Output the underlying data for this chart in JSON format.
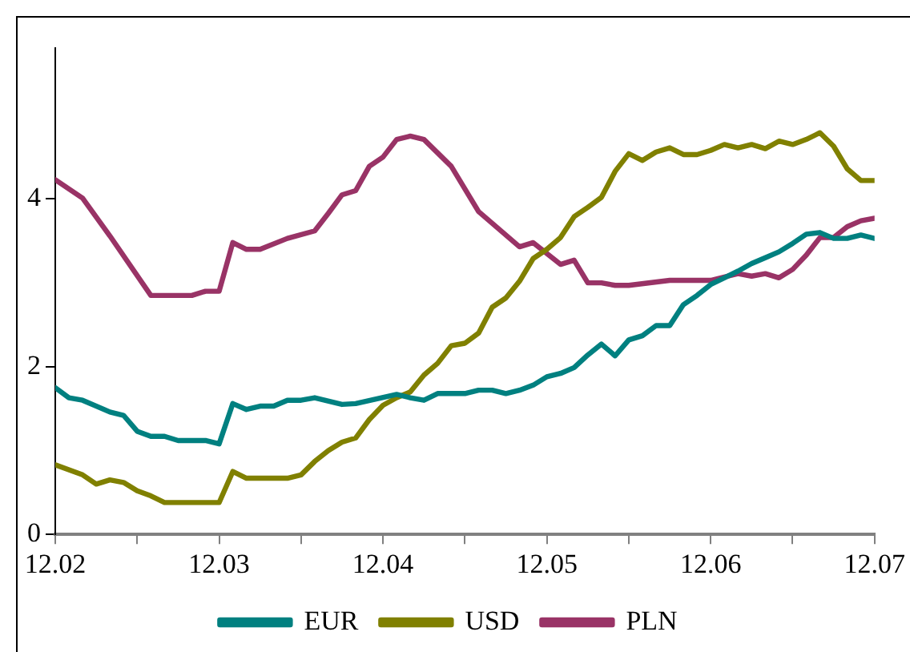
{
  "chart_data": {
    "type": "line",
    "xlim": [
      "2002-12",
      "2007-12"
    ],
    "xticks": [
      {
        "value": "2002-12",
        "label": "12.02"
      },
      {
        "value": "2003-06",
        "label": null
      },
      {
        "value": "2003-12",
        "label": "12.03"
      },
      {
        "value": "2004-06",
        "label": null
      },
      {
        "value": "2004-12",
        "label": "12.04"
      },
      {
        "value": "2005-06",
        "label": null
      },
      {
        "value": "2005-12",
        "label": "12.05"
      },
      {
        "value": "2006-06",
        "label": null
      },
      {
        "value": "2006-12",
        "label": "12.06"
      },
      {
        "value": "2007-06",
        "label": null
      },
      {
        "value": "2007-12",
        "label": "12.07"
      }
    ],
    "ylim": [
      0,
      5.8
    ],
    "yticks": [
      0,
      2,
      4
    ],
    "grid": false,
    "legend": "bottom",
    "marker": "none",
    "line_style": "solid",
    "series": [
      {
        "name": "EUR",
        "color": "#008080",
        "x": [
          "2002-12",
          "2003-01",
          "2003-02",
          "2003-04",
          "2003-05",
          "2003-06",
          "2003-07",
          "2003-08",
          "2003-09",
          "2003-11",
          "2003-12",
          "2004-01",
          "2004-02",
          "2004-03",
          "2004-04",
          "2004-05",
          "2004-06",
          "2004-07",
          "2004-09",
          "2004-10",
          "2005-01",
          "2005-02",
          "2005-03",
          "2005-04",
          "2005-06",
          "2005-07",
          "2005-08",
          "2005-09",
          "2005-10",
          "2005-11",
          "2005-12",
          "2006-01",
          "2006-02",
          "2006-03",
          "2006-04",
          "2006-05",
          "2006-06",
          "2006-07",
          "2006-08",
          "2006-09",
          "2006-10",
          "2006-11",
          "2006-12",
          "2007-01",
          "2007-02",
          "2007-03",
          "2007-04",
          "2007-05",
          "2007-06",
          "2007-07",
          "2007-08",
          "2007-09",
          "2007-10",
          "2007-11",
          "2007-12"
        ],
        "values": [
          1.75,
          1.63,
          1.6,
          1.46,
          1.42,
          1.23,
          1.17,
          1.17,
          1.12,
          1.12,
          1.08,
          1.56,
          1.49,
          1.53,
          1.53,
          1.6,
          1.6,
          1.63,
          1.55,
          1.56,
          1.67,
          1.63,
          1.6,
          1.68,
          1.68,
          1.72,
          1.72,
          1.68,
          1.72,
          1.78,
          1.88,
          1.92,
          1.99,
          2.14,
          2.27,
          2.13,
          2.32,
          2.37,
          2.49,
          2.49,
          2.74,
          2.85,
          2.98,
          3.06,
          3.14,
          3.23,
          3.3,
          3.37,
          3.47,
          3.58,
          3.6,
          3.53,
          3.53,
          3.57,
          3.53
        ]
      },
      {
        "name": "USD",
        "color": "#808000",
        "x": [
          "2002-12",
          "2003-02",
          "2003-03",
          "2003-04",
          "2003-05",
          "2003-06",
          "2003-07",
          "2003-08",
          "2003-12",
          "2004-01",
          "2004-02",
          "2004-05",
          "2004-06",
          "2004-07",
          "2004-08",
          "2004-09",
          "2004-10",
          "2004-11",
          "2004-12",
          "2005-01",
          "2005-02",
          "2005-03",
          "2005-04",
          "2005-05",
          "2005-06",
          "2005-07",
          "2005-08",
          "2005-09",
          "2005-10",
          "2005-11",
          "2005-12",
          "2006-01",
          "2006-02",
          "2006-03",
          "2006-04",
          "2006-05",
          "2006-06",
          "2006-07",
          "2006-08",
          "2006-09",
          "2006-10",
          "2006-11",
          "2006-12",
          "2007-01",
          "2007-02",
          "2007-03",
          "2007-04",
          "2007-05",
          "2007-06",
          "2007-07",
          "2007-08",
          "2007-09",
          "2007-10",
          "2007-11",
          "2007-12"
        ],
        "values": [
          0.83,
          0.71,
          0.6,
          0.65,
          0.62,
          0.52,
          0.46,
          0.38,
          0.38,
          0.75,
          0.67,
          0.67,
          0.71,
          0.87,
          1.0,
          1.1,
          1.15,
          1.37,
          1.54,
          1.63,
          1.7,
          1.9,
          2.04,
          2.25,
          2.28,
          2.4,
          2.71,
          2.82,
          3.02,
          3.29,
          3.4,
          3.54,
          3.79,
          3.9,
          4.02,
          4.33,
          4.54,
          4.46,
          4.56,
          4.61,
          4.53,
          4.53,
          4.58,
          4.65,
          4.61,
          4.65,
          4.6,
          4.69,
          4.65,
          4.71,
          4.79,
          4.63,
          4.36,
          4.22,
          4.22
        ]
      },
      {
        "name": "PLN",
        "color": "#993366",
        "x": [
          "2002-12",
          "2003-02",
          "2003-04",
          "2003-07",
          "2003-10",
          "2003-11",
          "2003-12",
          "2004-01",
          "2004-02",
          "2004-03",
          "2004-05",
          "2004-07",
          "2004-08",
          "2004-09",
          "2004-10",
          "2004-11",
          "2004-12",
          "2005-01",
          "2005-02",
          "2005-03",
          "2005-05",
          "2005-07",
          "2005-10",
          "2005-11",
          "2006-01",
          "2006-02",
          "2006-03",
          "2006-04",
          "2006-05",
          "2006-06",
          "2006-09",
          "2006-12",
          "2007-02",
          "2007-03",
          "2007-04",
          "2007-05",
          "2007-06",
          "2007-07",
          "2007-08",
          "2007-09",
          "2007-10",
          "2007-11",
          "2007-12"
        ],
        "values": [
          4.23,
          4.01,
          3.56,
          2.85,
          2.85,
          2.9,
          2.9,
          3.48,
          3.4,
          3.4,
          3.53,
          3.62,
          3.83,
          4.05,
          4.1,
          4.39,
          4.5,
          4.71,
          4.75,
          4.71,
          4.39,
          3.85,
          3.43,
          3.48,
          3.22,
          3.27,
          3.0,
          3.0,
          2.97,
          2.97,
          3.03,
          3.03,
          3.11,
          3.08,
          3.11,
          3.06,
          3.16,
          3.33,
          3.54,
          3.54,
          3.67,
          3.74,
          3.77
        ]
      }
    ]
  }
}
